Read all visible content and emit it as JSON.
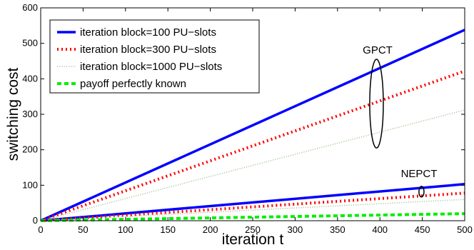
{
  "chart_data": {
    "type": "line",
    "title": "",
    "xlabel": "iteration t",
    "ylabel": "switching cost",
    "xlim": [
      0,
      500
    ],
    "ylim": [
      0,
      600
    ],
    "xticks": [
      0,
      50,
      100,
      150,
      200,
      250,
      300,
      350,
      400,
      450,
      500
    ],
    "yticks": [
      0,
      100,
      200,
      300,
      400,
      500,
      600
    ],
    "grid": false,
    "legend_position": "top-left",
    "series": [
      {
        "name": "iteration block=100 PU−slots",
        "group": "GPCT",
        "color": "#0000ff",
        "style": "solid",
        "x": [
          0,
          500
        ],
        "y": [
          0,
          538
        ]
      },
      {
        "name": "iteration block=300 PU−slots",
        "group": "GPCT",
        "color": "#ff0000",
        "style": "dotted",
        "x": [
          0,
          500
        ],
        "y": [
          0,
          422
        ]
      },
      {
        "name": "iteration block=1000 PU−slots",
        "group": "GPCT",
        "color": "#a8c8a0",
        "style": "dotted-thin",
        "x": [
          0,
          500
        ],
        "y": [
          0,
          312
        ]
      },
      {
        "name": "",
        "group": "NEPCT",
        "color": "#0000ff",
        "style": "solid",
        "x": [
          0,
          500
        ],
        "y": [
          0,
          103
        ]
      },
      {
        "name": "",
        "group": "NEPCT",
        "color": "#ff0000",
        "style": "dotted",
        "x": [
          0,
          500
        ],
        "y": [
          0,
          78
        ]
      },
      {
        "name": "",
        "group": "NEPCT",
        "color": "#a8c8a0",
        "style": "dotted-thin",
        "x": [
          0,
          500
        ],
        "y": [
          0,
          60
        ]
      },
      {
        "name": "payoff perfectly known",
        "group": "",
        "color": "#00ee00",
        "style": "dashed",
        "x": [
          0,
          500
        ],
        "y": [
          0,
          20
        ]
      }
    ],
    "annotations": [
      {
        "text": "GPCT",
        "ellipse_center": [
          396,
          330
        ],
        "ellipse_radii": [
          8,
          125
        ]
      },
      {
        "text": "NEPCT",
        "ellipse_center": [
          449,
          82
        ],
        "ellipse_radii": [
          3,
          15
        ]
      }
    ]
  }
}
